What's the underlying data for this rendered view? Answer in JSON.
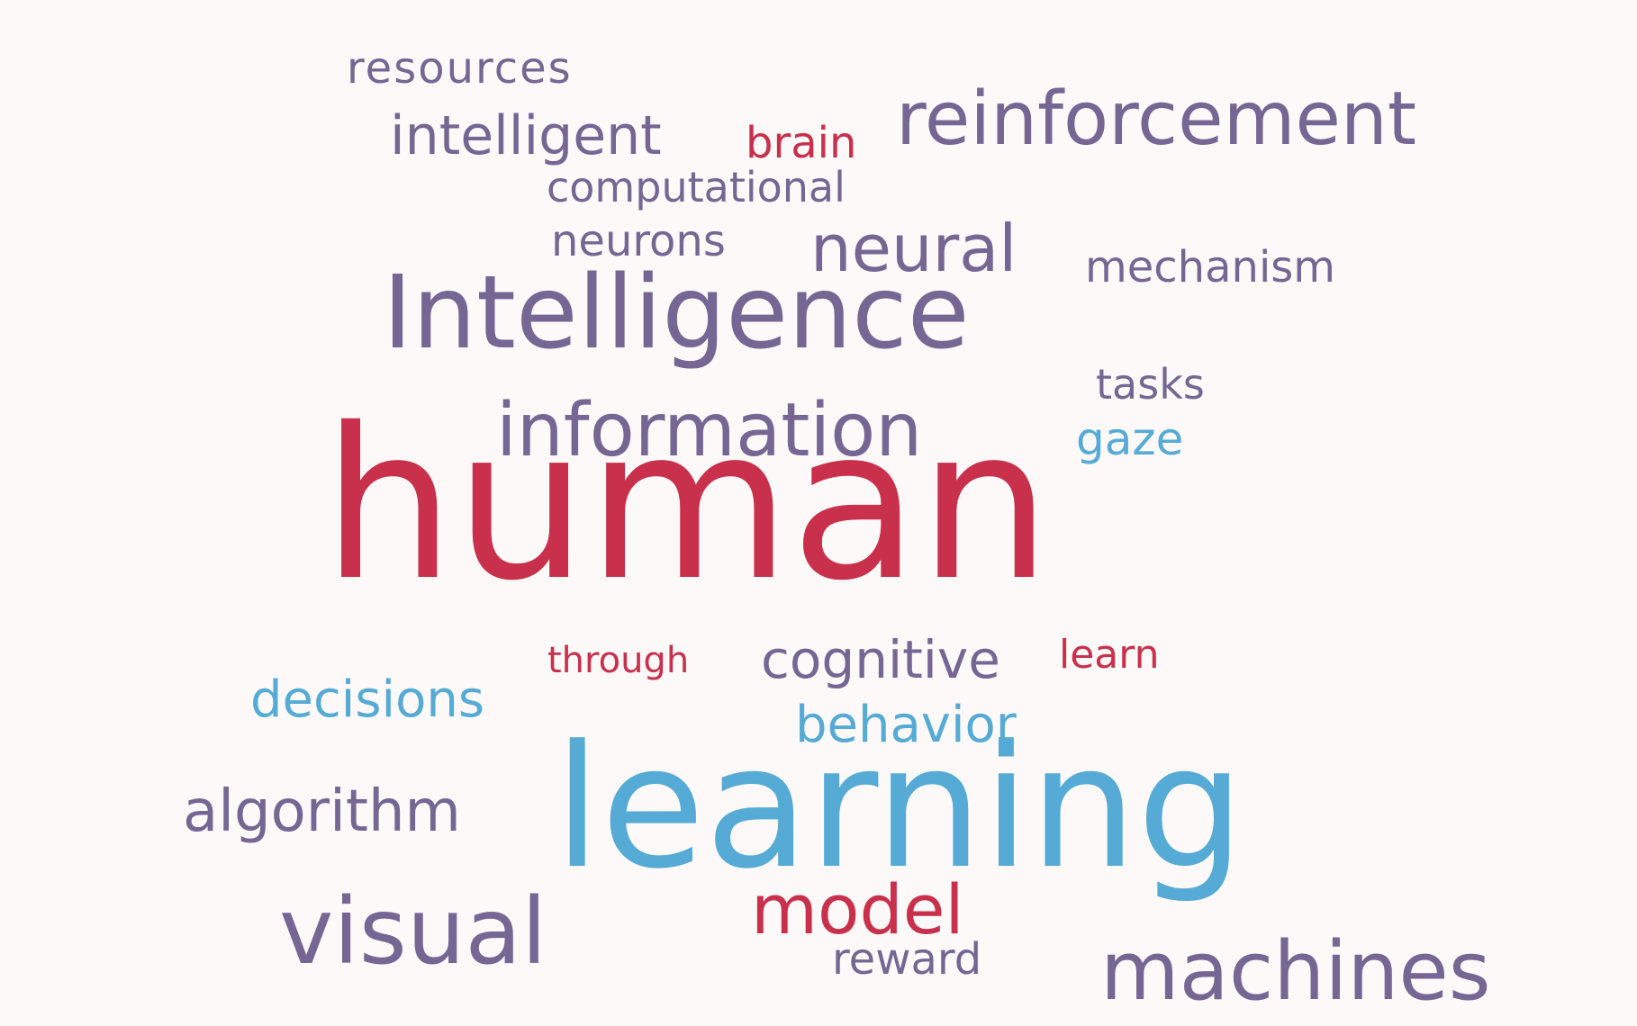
{
  "words": {
    "resources": {
      "text": "resources",
      "color": "#756693"
    },
    "intelligent": {
      "text": "intelligent",
      "color": "#756693"
    },
    "brain": {
      "text": "brain",
      "color": "#c8304c"
    },
    "reinforcement": {
      "text": "reinforcement",
      "color": "#756693"
    },
    "computational": {
      "text": "computational",
      "color": "#756693"
    },
    "neurons": {
      "text": "neurons",
      "color": "#756693"
    },
    "neural": {
      "text": "neural",
      "color": "#756693"
    },
    "mechanism": {
      "text": "mechanism",
      "color": "#756693"
    },
    "Intelligence": {
      "text": "Intelligence",
      "color": "#756693"
    },
    "tasks": {
      "text": "tasks",
      "color": "#756693"
    },
    "information": {
      "text": "information",
      "color": "#756693"
    },
    "gaze": {
      "text": "gaze",
      "color": "#55abd6"
    },
    "human": {
      "text": "human",
      "color": "#c8304c"
    },
    "through": {
      "text": "through",
      "color": "#c8304c"
    },
    "cognitive": {
      "text": "cognitive",
      "color": "#756693"
    },
    "learn": {
      "text": "learn",
      "color": "#c8304c"
    },
    "decisions": {
      "text": "decisions",
      "color": "#55abd6"
    },
    "behavior": {
      "text": "behavior",
      "color": "#55abd6"
    },
    "algorithm": {
      "text": "algorithm",
      "color": "#756693"
    },
    "learning": {
      "text": "learning",
      "color": "#55abd6"
    },
    "visual": {
      "text": "visual",
      "color": "#756693"
    },
    "model": {
      "text": "model",
      "color": "#c8304c"
    },
    "reward": {
      "text": "reward",
      "color": "#756693"
    },
    "machines": {
      "text": "machines",
      "color": "#756693"
    }
  },
  "palette": {
    "background": "#fdf9f8",
    "purple": "#756693",
    "red": "#c8304c",
    "blue": "#55abd6"
  }
}
